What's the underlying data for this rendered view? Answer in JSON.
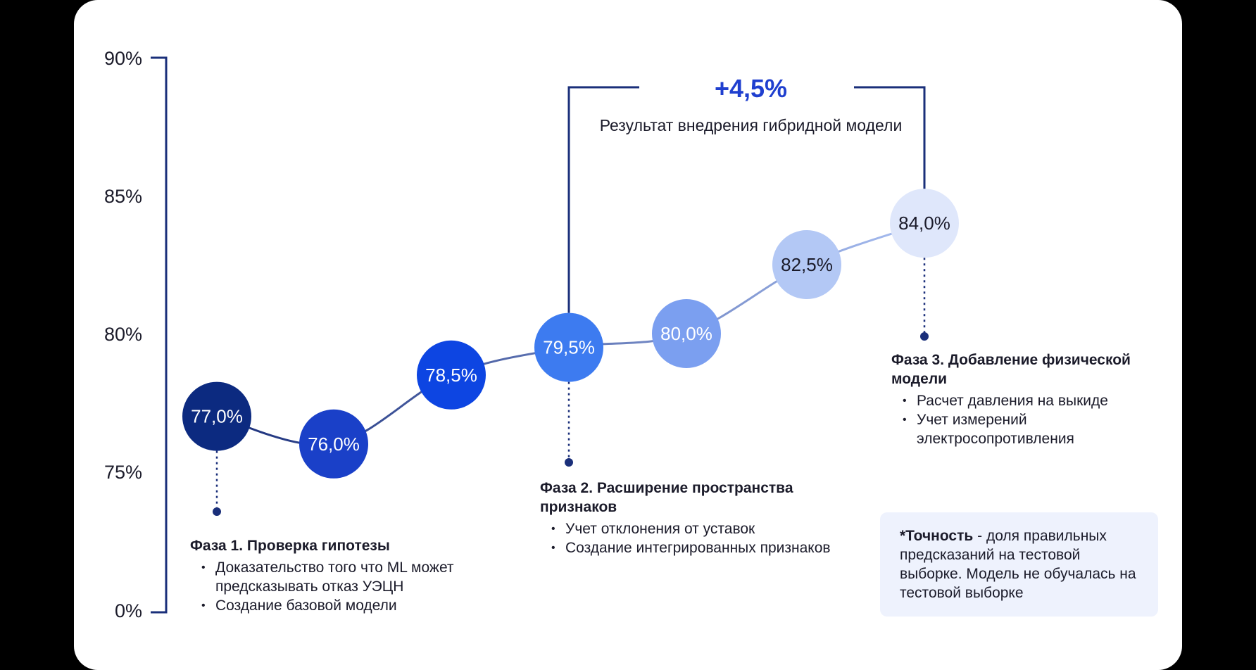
{
  "chart_data": {
    "type": "line",
    "title": "",
    "xlabel": "",
    "ylabel": "",
    "y_ticks": [
      "90%",
      "85%",
      "80%",
      "75%",
      "0%"
    ],
    "x": [
      1,
      2,
      3,
      4,
      5,
      6,
      7
    ],
    "values": [
      77.0,
      76.0,
      78.5,
      79.5,
      80.0,
      82.5,
      84.0
    ],
    "labels": [
      "77,0%",
      "76,0%",
      "78,5%",
      "79,5%",
      "80,0%",
      "82,5%",
      "84,0%"
    ],
    "y_axis_break": true,
    "grid": false,
    "colors": [
      "#0c2a80",
      "#1a40c8",
      "#0d45e2",
      "#3d7bf0",
      "#7b9ff0",
      "#b3c8f5",
      "#dfe7fb"
    ],
    "label_colors": [
      "#ffffff",
      "#ffffff",
      "#ffffff",
      "#ffffff",
      "#ffffff",
      "#1b1b2a",
      "#1b1b2a"
    ],
    "bracket": {
      "delta": "+4,5%",
      "caption": "Результат внедрения гибридной модели"
    }
  },
  "phases": [
    {
      "title": "Фаза 1. Проверка гипотезы",
      "items": [
        "Доказательство того что ML может предсказывать отказ УЭЦН",
        "Создание базовой модели"
      ]
    },
    {
      "title": "Фаза 2. Расширение пространства признаков",
      "items": [
        "Учет отклонения от уставок",
        "Создание интегрированных признаков"
      ]
    },
    {
      "title": "Фаза 3. Добавление физической модели",
      "items": [
        "Расчет давления на выкиде",
        "Учет измерений электросопротивления"
      ]
    }
  ],
  "note": {
    "term": "*Точность",
    "text": " - доля правильных предсказаний на тестовой выборке. Модель не обучалась на тестовой выборке"
  }
}
